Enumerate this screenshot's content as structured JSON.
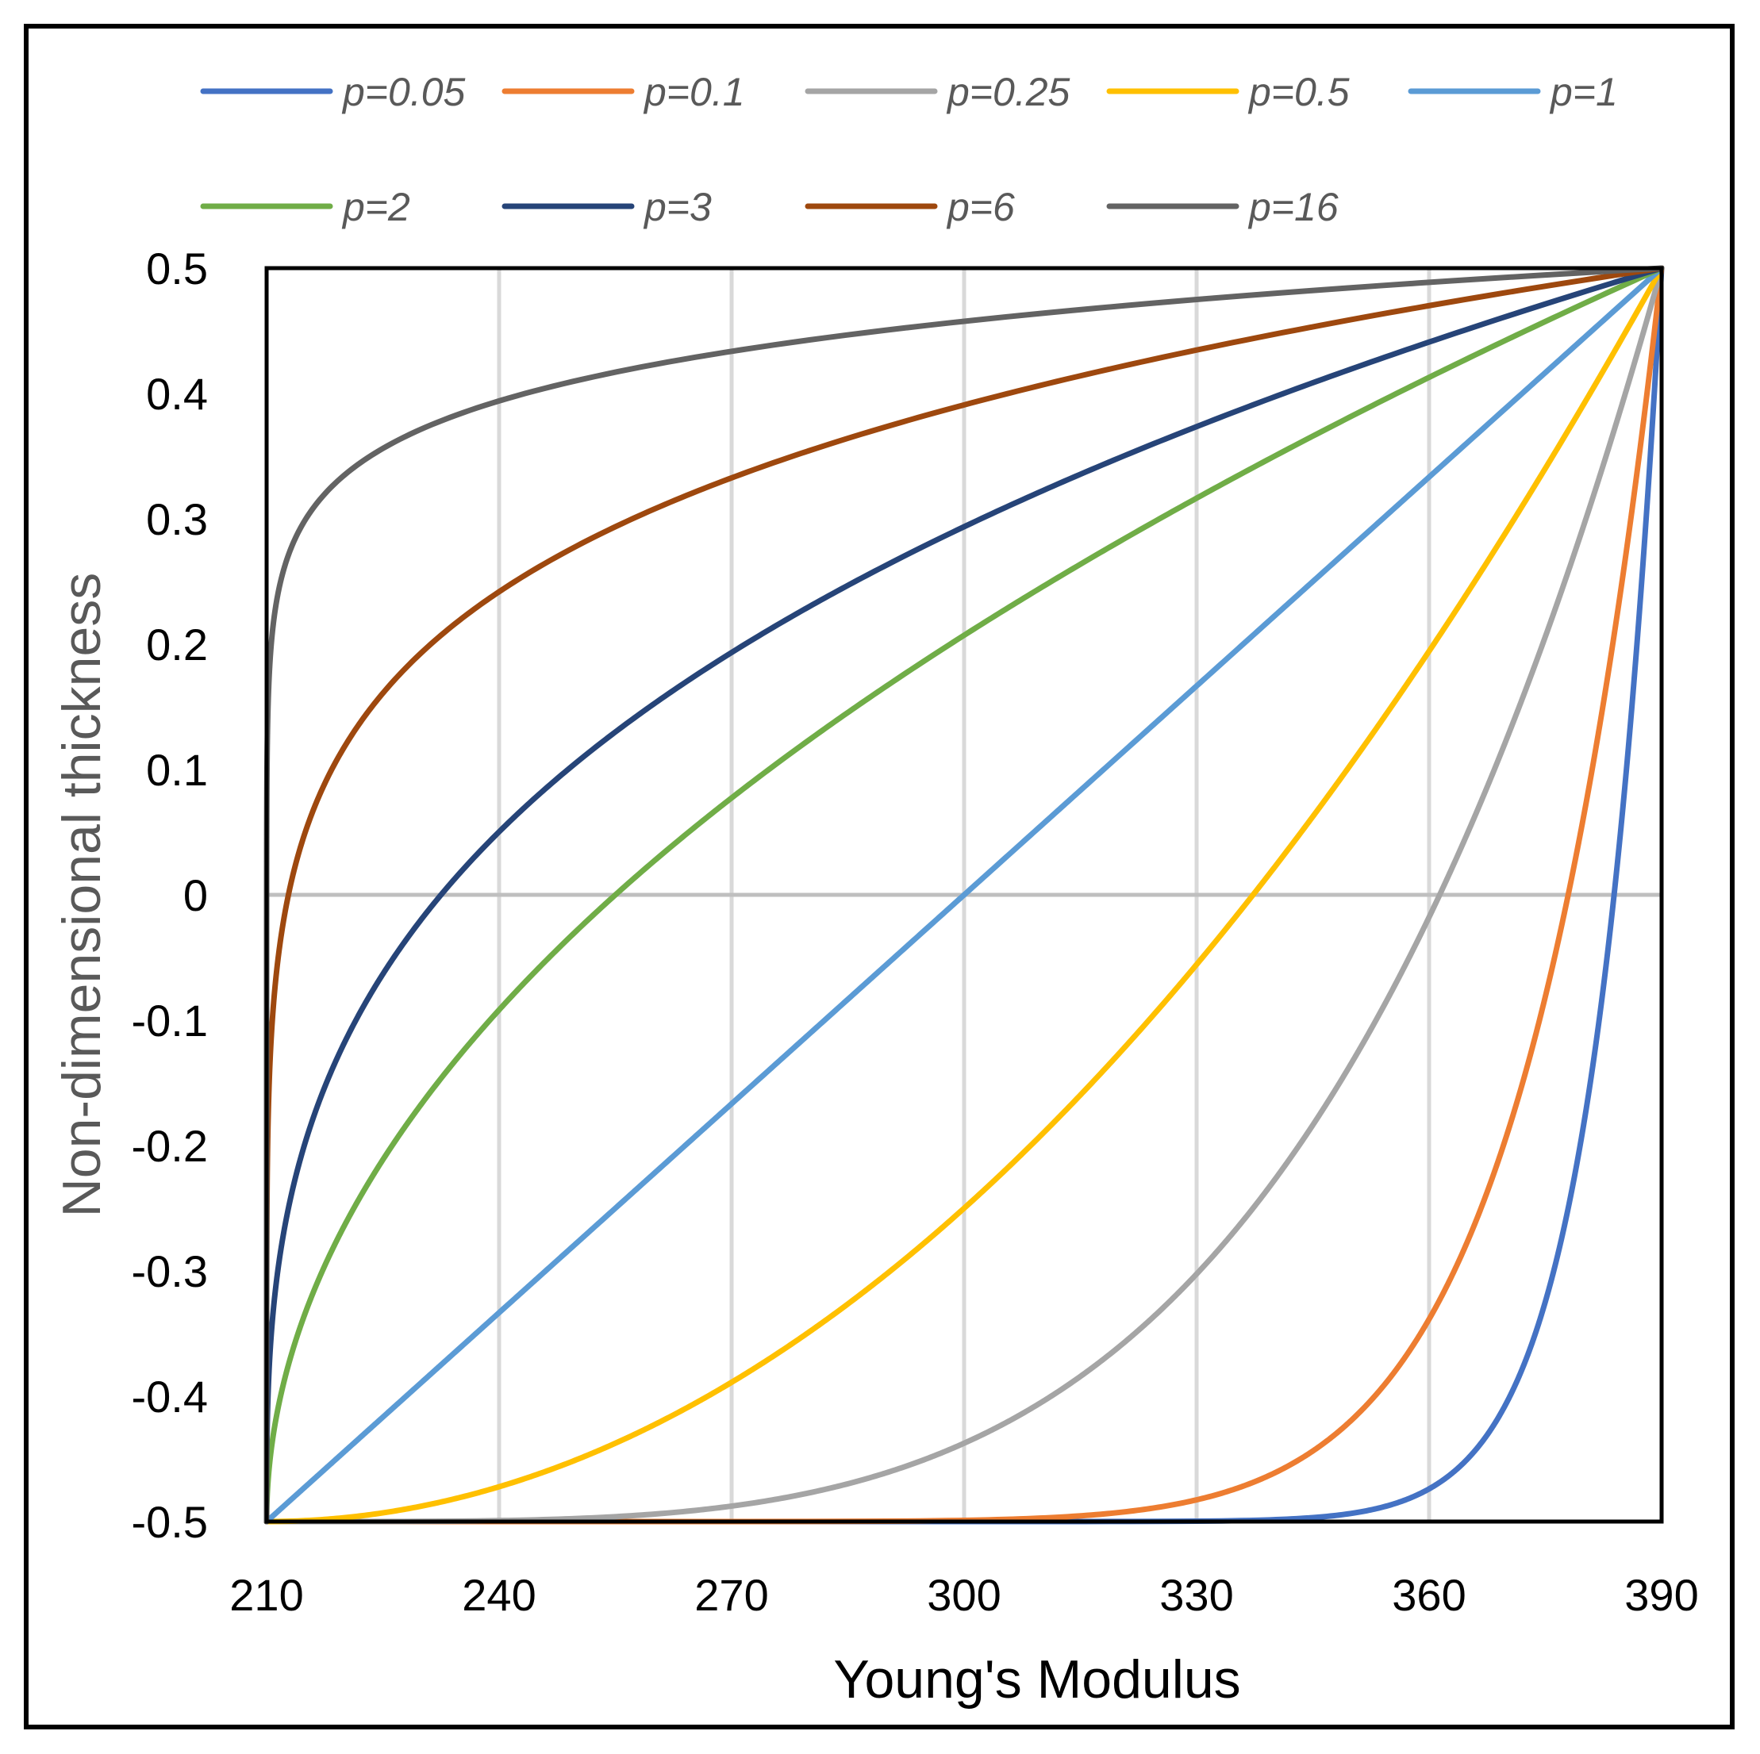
{
  "chart_data": {
    "type": "line",
    "title": "",
    "xlabel": "Young's Modulus",
    "ylabel": "Non-dimensional thickness",
    "xlim": [
      210,
      390
    ],
    "ylim": [
      -0.5,
      0.5
    ],
    "x_ticks": [
      210,
      240,
      270,
      300,
      330,
      360,
      390
    ],
    "y_ticks": [
      -0.5,
      -0.4,
      -0.3,
      -0.2,
      -0.1,
      0,
      0.1,
      0.2,
      0.3,
      0.4,
      0.5
    ],
    "x_tick_labels": [
      "210",
      "240",
      "270",
      "300",
      "330",
      "360",
      "390"
    ],
    "y_tick_labels": [
      "-0.5",
      "-0.4",
      "-0.3",
      "-0.2",
      "-0.1",
      "0",
      "0.1",
      "0.2",
      "0.3",
      "0.4",
      "0.5"
    ],
    "grid": true,
    "legend_position": "top",
    "colors": {
      "axis_title_x": "#000000",
      "axis_title_y": "#595959",
      "grid": "#d9d9d9",
      "zero_line": "#bfbfbf"
    },
    "E_ceramic": 390,
    "E_metal": 210,
    "series": [
      {
        "name": "p=0.05",
        "p": 0.05,
        "color": "#4472C4"
      },
      {
        "name": "p=0.1",
        "p": 0.1,
        "color": "#ED7D31"
      },
      {
        "name": "p=0.25",
        "p": 0.25,
        "color": "#A5A5A5"
      },
      {
        "name": "p=0.5",
        "p": 0.5,
        "color": "#FFC000"
      },
      {
        "name": "p=1",
        "p": 1,
        "color": "#5B9BD5"
      },
      {
        "name": "p=2",
        "p": 2,
        "color": "#70AD47"
      },
      {
        "name": "p=3",
        "p": 3,
        "color": "#264478"
      },
      {
        "name": "p=6",
        "p": 6,
        "color": "#9E480E"
      },
      {
        "name": "p=16",
        "p": 16,
        "color": "#636363"
      }
    ]
  }
}
